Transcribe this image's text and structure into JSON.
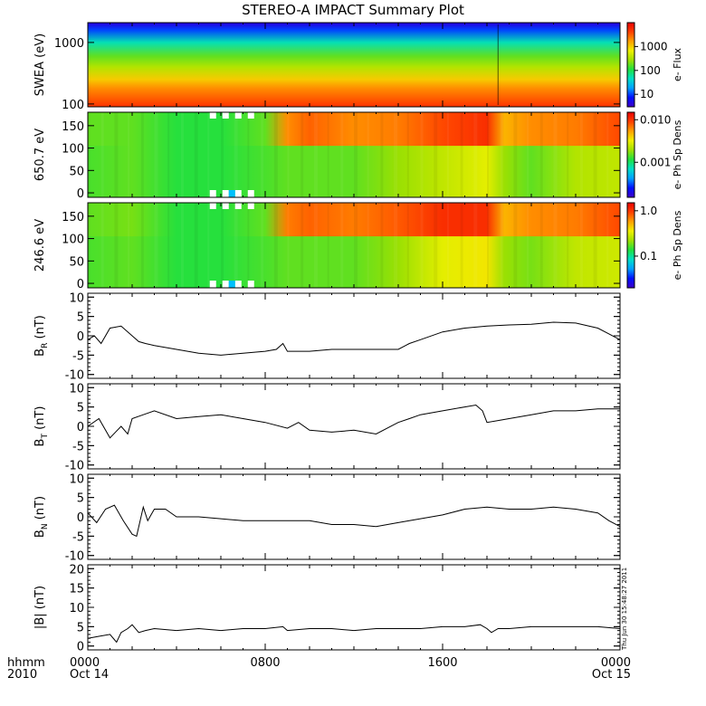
{
  "title": "STEREO-A IMPACT Summary Plot",
  "timestamp": "Thu Jun 30 15:48:27 2011",
  "time_axis": {
    "label_line1": "hhmm",
    "label_line2": "2010",
    "ticks": [
      {
        "time": "0000",
        "date": "Oct 14",
        "hours": 0
      },
      {
        "time": "0800",
        "date": "",
        "hours": 8
      },
      {
        "time": "1600",
        "date": "",
        "hours": 16
      },
      {
        "time": "0000",
        "date": "Oct 15",
        "hours": 24
      }
    ],
    "range_hours": [
      0,
      24
    ]
  },
  "colors": {
    "colormap": [
      "#3c00c8",
      "#0010ff",
      "#00a0ff",
      "#00e0c8",
      "#20e040",
      "#a0e000",
      "#f0f000",
      "#ffa000",
      "#ff4000",
      "#e80000"
    ]
  },
  "chart_data": [
    {
      "type": "heatmap",
      "panel": "swea",
      "ylabel": "SWEA (eV)",
      "yscale": "log",
      "ylim": [
        90,
        2100
      ],
      "yticks": [
        {
          "value": 100,
          "label": "100"
        },
        {
          "value": 1000,
          "label": "1000"
        }
      ],
      "colorbar": {
        "label": "e- Flux",
        "scale": "log",
        "range": [
          3,
          10000
        ],
        "ticks": [
          {
            "value": 10,
            "label": "10"
          },
          {
            "value": 100,
            "label": "100"
          },
          {
            "value": 1000,
            "label": "1000"
          }
        ]
      },
      "hours": [
        0,
        4,
        8,
        12,
        16,
        18.5,
        20,
        24
      ],
      "bands": [
        {
          "energy": 2000,
          "level": 0.05
        },
        {
          "energy": 1600,
          "level": 0.15
        },
        {
          "energy": 1000,
          "level": 0.35
        },
        {
          "energy": 600,
          "level": 0.5
        },
        {
          "energy": 400,
          "level": 0.58
        },
        {
          "energy": 250,
          "level": 0.72
        },
        {
          "energy": 180,
          "level": 0.8
        },
        {
          "energy": 120,
          "level": 0.86
        },
        {
          "energy": 95,
          "level": 0.9
        }
      ]
    },
    {
      "type": "heatmap",
      "panel": "pad650",
      "ylabel": "650.7 eV",
      "ylim": [
        -10,
        180
      ],
      "yticks": [
        {
          "value": 0,
          "label": "0"
        },
        {
          "value": 50,
          "label": "50"
        },
        {
          "value": 100,
          "label": "100"
        },
        {
          "value": 150,
          "label": "150"
        }
      ],
      "colorbar": {
        "label": "e- Ph Sp Dens",
        "scale": "log",
        "range": [
          0.00015,
          0.015
        ],
        "ticks": [
          {
            "value": 0.001,
            "label": "0.001"
          },
          {
            "value": 0.01,
            "label": "0.010"
          }
        ]
      },
      "hours": [
        0,
        2,
        4,
        6,
        8,
        9,
        10,
        12,
        14,
        16,
        18,
        18.8,
        20,
        22,
        24
      ],
      "level_high_angle": [
        0.5,
        0.5,
        0.45,
        0.45,
        0.5,
        0.8,
        0.85,
        0.8,
        0.82,
        0.88,
        0.92,
        0.75,
        0.8,
        0.82,
        0.88
      ],
      "level_low_angle": [
        0.48,
        0.5,
        0.45,
        0.45,
        0.48,
        0.5,
        0.5,
        0.5,
        0.55,
        0.6,
        0.65,
        0.55,
        0.5,
        0.58,
        0.6
      ],
      "data_gaps": [
        {
          "start_hour": 5.5,
          "end_hour": 7.5
        }
      ]
    },
    {
      "type": "heatmap",
      "panel": "pad246",
      "ylabel": "246.6 eV",
      "ylim": [
        -10,
        180
      ],
      "yticks": [
        {
          "value": 0,
          "label": "0"
        },
        {
          "value": 50,
          "label": "50"
        },
        {
          "value": 100,
          "label": "100"
        },
        {
          "value": 150,
          "label": "150"
        }
      ],
      "colorbar": {
        "label": "e- Ph Sp Dens",
        "scale": "log",
        "range": [
          0.02,
          1.5
        ],
        "ticks": [
          {
            "value": 0.1,
            "label": "0.1"
          },
          {
            "value": 1.0,
            "label": "1.0"
          }
        ]
      },
      "hours": [
        0,
        2,
        4,
        6,
        8,
        9,
        10,
        12,
        14,
        16,
        18,
        18.8,
        20,
        22,
        24
      ],
      "level_high_angle": [
        0.5,
        0.52,
        0.45,
        0.45,
        0.5,
        0.82,
        0.85,
        0.82,
        0.86,
        0.92,
        0.92,
        0.75,
        0.8,
        0.82,
        0.88
      ],
      "level_low_angle": [
        0.48,
        0.5,
        0.45,
        0.45,
        0.48,
        0.5,
        0.5,
        0.5,
        0.55,
        0.65,
        0.68,
        0.55,
        0.52,
        0.6,
        0.62
      ],
      "data_gaps": [
        {
          "start_hour": 5.5,
          "end_hour": 7.5
        }
      ]
    },
    {
      "type": "line",
      "panel": "br",
      "ylabel": "B",
      "ylabel_sub": "R",
      "ylabel_unit": "(nT)",
      "ylim": [
        -11,
        11
      ],
      "yticks": [
        {
          "value": -10,
          "label": "-10"
        },
        {
          "value": -5,
          "label": "-5"
        },
        {
          "value": 0,
          "label": "0"
        },
        {
          "value": 5,
          "label": "5"
        },
        {
          "value": 10,
          "label": "10"
        }
      ],
      "x": [
        0,
        0.3,
        0.6,
        1.0,
        1.5,
        2.0,
        2.3,
        2.6,
        3.0,
        4.0,
        5.0,
        6.0,
        7.0,
        8.0,
        8.5,
        8.8,
        9.0,
        10.0,
        11.0,
        12.0,
        13.0,
        14.0,
        14.5,
        15.0,
        16.0,
        17.0,
        18.0,
        19.0,
        20.0,
        21.0,
        22.0,
        23.0,
        23.5,
        24.0
      ],
      "y": [
        -1,
        0,
        -2,
        2,
        2.5,
        0,
        -1.5,
        -2,
        -2.5,
        -3.5,
        -4.5,
        -5,
        -4.5,
        -4,
        -3.5,
        -2,
        -4,
        -4,
        -3.5,
        -3.5,
        -3.5,
        -3.5,
        -2,
        -1,
        1,
        2,
        2.5,
        2.8,
        3,
        3.5,
        3.3,
        2,
        0.5,
        -1
      ]
    },
    {
      "type": "line",
      "panel": "bt",
      "ylabel": "B",
      "ylabel_sub": "T",
      "ylabel_unit": "(nT)",
      "ylim": [
        -11,
        11
      ],
      "yticks": [
        {
          "value": -10,
          "label": "-10"
        },
        {
          "value": -5,
          "label": "-5"
        },
        {
          "value": 0,
          "label": "0"
        },
        {
          "value": 5,
          "label": "5"
        },
        {
          "value": 10,
          "label": "10"
        }
      ],
      "x": [
        0,
        0.5,
        1.0,
        1.5,
        1.8,
        2.0,
        2.5,
        3.0,
        4.0,
        5.0,
        6.0,
        7.0,
        8.0,
        9.0,
        9.5,
        10.0,
        11.0,
        12.0,
        13.0,
        14.0,
        14.5,
        15.0,
        16.0,
        17.0,
        17.5,
        17.8,
        18.0,
        18.5,
        19.0,
        20.0,
        21.0,
        22.0,
        23.0,
        24.0
      ],
      "y": [
        0,
        2,
        -3,
        0,
        -2,
        2,
        3,
        4,
        2,
        2.5,
        3,
        2,
        1,
        -0.5,
        1,
        -1,
        -1.5,
        -1,
        -2,
        1,
        2,
        3,
        4,
        5,
        5.5,
        4,
        1,
        1.5,
        2,
        3,
        4,
        4,
        4.5,
        4.5
      ]
    },
    {
      "type": "line",
      "panel": "bn",
      "ylabel": "B",
      "ylabel_sub": "N",
      "ylabel_unit": "(nT)",
      "ylim": [
        -11,
        11
      ],
      "yticks": [
        {
          "value": -10,
          "label": "-10"
        },
        {
          "value": -5,
          "label": "-5"
        },
        {
          "value": 0,
          "label": "0"
        },
        {
          "value": 5,
          "label": "5"
        },
        {
          "value": 10,
          "label": "10"
        }
      ],
      "x": [
        0,
        0.4,
        0.8,
        1.2,
        1.6,
        2.0,
        2.2,
        2.5,
        2.7,
        3.0,
        3.5,
        4.0,
        5.0,
        6.0,
        7.0,
        8.0,
        9.0,
        10.0,
        11.0,
        12.0,
        13.0,
        14.0,
        15.0,
        16.0,
        17.0,
        18.0,
        19.0,
        20.0,
        21.0,
        22.0,
        23.0,
        23.5,
        24.0
      ],
      "y": [
        1,
        -1.5,
        2,
        3,
        -1,
        -4.5,
        -5,
        2.5,
        -1,
        2,
        2,
        0,
        0,
        -0.5,
        -1,
        -1,
        -1,
        -1,
        -2,
        -2,
        -2.5,
        -1.5,
        -0.5,
        0.5,
        2,
        2.5,
        2,
        2,
        2.5,
        2,
        1,
        -1,
        -2.5
      ]
    },
    {
      "type": "line",
      "panel": "bmag",
      "ylabel": "|B| (nT)",
      "ylim": [
        -1,
        21
      ],
      "yticks": [
        {
          "value": 0,
          "label": "0"
        },
        {
          "value": 5,
          "label": "5"
        },
        {
          "value": 10,
          "label": "10"
        },
        {
          "value": 15,
          "label": "15"
        },
        {
          "value": 20,
          "label": "20"
        }
      ],
      "x": [
        0,
        0.5,
        1.0,
        1.3,
        1.5,
        1.8,
        2.0,
        2.3,
        2.6,
        3.0,
        4.0,
        5.0,
        6.0,
        7.0,
        8.0,
        8.8,
        9.0,
        10.0,
        11.0,
        12.0,
        13.0,
        14.0,
        15.0,
        16.0,
        17.0,
        17.7,
        18.0,
        18.2,
        18.5,
        19.0,
        20.0,
        21.0,
        22.0,
        23.0,
        24.0
      ],
      "y": [
        2,
        2.5,
        3,
        1,
        3.5,
        4.5,
        5.5,
        3.5,
        4,
        4.5,
        4,
        4.5,
        4,
        4.5,
        4.5,
        5,
        4,
        4.5,
        4.5,
        4,
        4.5,
        4.5,
        4.5,
        5,
        5,
        5.5,
        4.5,
        3.5,
        4.5,
        4.5,
        5,
        5,
        5,
        5,
        4.5
      ]
    }
  ]
}
